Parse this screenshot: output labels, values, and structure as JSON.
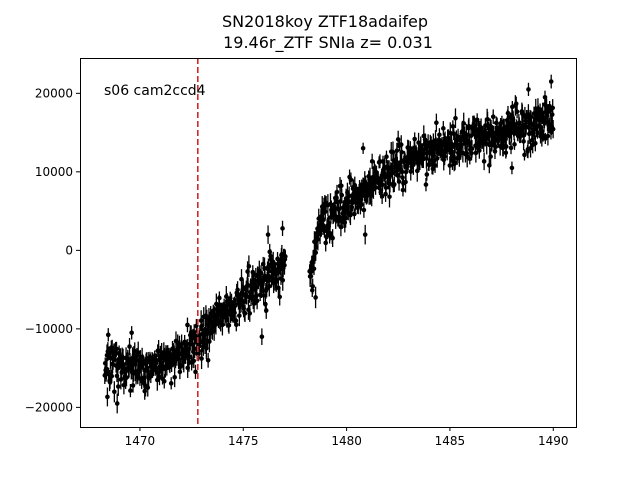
{
  "chart_data": {
    "type": "scatter",
    "title_line1": "SN2018koy  ZTF18adaifep",
    "title_line2": "19.46r_ZTF SNIa z= 0.031",
    "annotation": "s06 cam2ccd4",
    "xlabel": "",
    "ylabel": "",
    "xlim": [
      1467.1,
      1491.1
    ],
    "ylim": [
      -22500,
      24500
    ],
    "x_ticks": [
      1470,
      1475,
      1480,
      1485,
      1490
    ],
    "y_ticks": [
      -20000,
      -10000,
      0,
      10000,
      20000
    ],
    "x_tick_labels": [
      "1470",
      "1475",
      "1480",
      "1485",
      "1490"
    ],
    "y_tick_labels": [
      "−20000",
      "−10000",
      "0",
      "10000",
      "20000"
    ],
    "vline": {
      "x": 1472.8,
      "color": "#d62728",
      "style": "dashed"
    },
    "grid": false,
    "series": [
      {
        "color": "#000000",
        "marker": "circle",
        "error_bars": true,
        "trend_knots": [
          {
            "x": 1468.3,
            "y": -14500
          },
          {
            "x": 1470.0,
            "y": -15000
          },
          {
            "x": 1471.5,
            "y": -14000
          },
          {
            "x": 1472.8,
            "y": -12000
          },
          {
            "x": 1474.0,
            "y": -8000
          },
          {
            "x": 1475.5,
            "y": -5000
          },
          {
            "x": 1477.0,
            "y": -2000
          },
          {
            "x": 1478.3,
            "y": -3000
          },
          {
            "x": 1478.7,
            "y": 3000
          },
          {
            "x": 1480.0,
            "y": 6000
          },
          {
            "x": 1481.5,
            "y": 9000
          },
          {
            "x": 1483.0,
            "y": 11500
          },
          {
            "x": 1485.0,
            "y": 13500
          },
          {
            "x": 1487.5,
            "y": 15000
          },
          {
            "x": 1490.0,
            "y": 16500
          }
        ],
        "outliers": [
          {
            "x": 1468.9,
            "y": -19500
          },
          {
            "x": 1469.6,
            "y": -10500
          },
          {
            "x": 1472.3,
            "y": -9500
          },
          {
            "x": 1473.3,
            "y": -14000
          },
          {
            "x": 1476.2,
            "y": 2000
          },
          {
            "x": 1475.9,
            "y": -11000
          },
          {
            "x": 1476.9,
            "y": 2800
          },
          {
            "x": 1478.3,
            "y": -2500
          },
          {
            "x": 1478.5,
            "y": -6000
          },
          {
            "x": 1480.9,
            "y": 2000
          },
          {
            "x": 1480.8,
            "y": 13000
          },
          {
            "x": 1488.0,
            "y": 10500
          },
          {
            "x": 1488.8,
            "y": 20500
          },
          {
            "x": 1489.6,
            "y": 19500
          },
          {
            "x": 1489.9,
            "y": 21500
          }
        ]
      }
    ]
  }
}
